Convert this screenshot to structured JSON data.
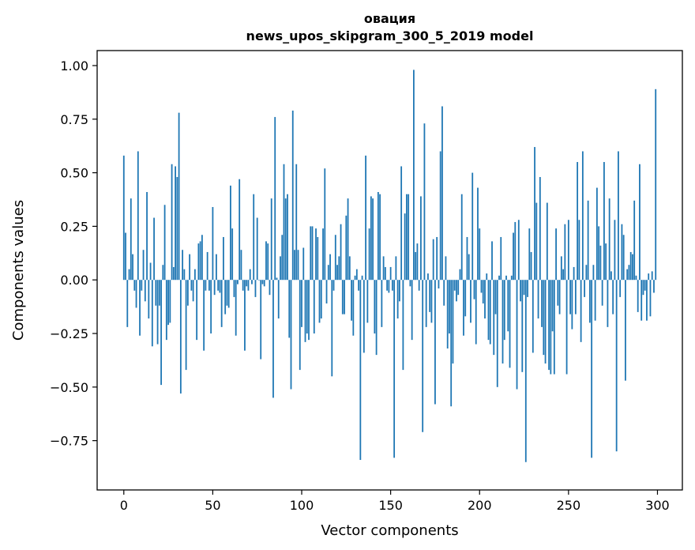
{
  "chart_data": {
    "type": "bar",
    "title": "овация",
    "subtitle": "news_upos_skipgram_300_5_2019 model",
    "xlabel": "Vector components",
    "ylabel": "Components values",
    "xlim": [
      -15,
      314
    ],
    "ylim": [
      -0.98,
      1.07
    ],
    "xticks": [
      0,
      50,
      100,
      150,
      200,
      250,
      300
    ],
    "xtick_labels": [
      "0",
      "50",
      "100",
      "150",
      "200",
      "250",
      "300"
    ],
    "yticks": [
      -0.75,
      -0.5,
      -0.25,
      0.0,
      0.25,
      0.5,
      0.75,
      1.0
    ],
    "ytick_labels": [
      "−0.75",
      "−0.50",
      "−0.25",
      "0.00",
      "0.25",
      "0.50",
      "0.75",
      "1.00"
    ],
    "grid": false,
    "legend": "none",
    "bar_color": "#1f77b4",
    "x": [
      0,
      1,
      2,
      3,
      4,
      5,
      6,
      7,
      8,
      9,
      10,
      11,
      12,
      13,
      14,
      15,
      16,
      17,
      18,
      19,
      20,
      21,
      22,
      23,
      24,
      25,
      26,
      27,
      28,
      29,
      30,
      31,
      32,
      33,
      34,
      35,
      36,
      37,
      38,
      39,
      40,
      41,
      42,
      43,
      44,
      45,
      46,
      47,
      48,
      49,
      50,
      51,
      52,
      53,
      54,
      55,
      56,
      57,
      58,
      59,
      60,
      61,
      62,
      63,
      64,
      65,
      66,
      67,
      68,
      69,
      70,
      71,
      72,
      73,
      74,
      75,
      76,
      77,
      78,
      79,
      80,
      81,
      82,
      83,
      84,
      85,
      86,
      87,
      88,
      89,
      90,
      91,
      92,
      93,
      94,
      95,
      96,
      97,
      98,
      99,
      100,
      101,
      102,
      103,
      104,
      105,
      106,
      107,
      108,
      109,
      110,
      111,
      112,
      113,
      114,
      115,
      116,
      117,
      118,
      119,
      120,
      121,
      122,
      123,
      124,
      125,
      126,
      127,
      128,
      129,
      130,
      131,
      132,
      133,
      134,
      135,
      136,
      137,
      138,
      139,
      140,
      141,
      142,
      143,
      144,
      145,
      146,
      147,
      148,
      149,
      150,
      151,
      152,
      153,
      154,
      155,
      156,
      157,
      158,
      159,
      160,
      161,
      162,
      163,
      164,
      165,
      166,
      167,
      168,
      169,
      170,
      171,
      172,
      173,
      174,
      175,
      176,
      177,
      178,
      179,
      180,
      181,
      182,
      183,
      184,
      185,
      186,
      187,
      188,
      189,
      190,
      191,
      192,
      193,
      194,
      195,
      196,
      197,
      198,
      199,
      200,
      201,
      202,
      203,
      204,
      205,
      206,
      207,
      208,
      209,
      210,
      211,
      212,
      213,
      214,
      215,
      216,
      217,
      218,
      219,
      220,
      221,
      222,
      223,
      224,
      225,
      226,
      227,
      228,
      229,
      230,
      231,
      232,
      233,
      234,
      235,
      236,
      237,
      238,
      239,
      240,
      241,
      242,
      243,
      244,
      245,
      246,
      247,
      248,
      249,
      250,
      251,
      252,
      253,
      254,
      255,
      256,
      257,
      258,
      259,
      260,
      261,
      262,
      263,
      264,
      265,
      266,
      267,
      268,
      269,
      270,
      271,
      272,
      273,
      274,
      275,
      276,
      277,
      278,
      279,
      280,
      281,
      282,
      283,
      284,
      285,
      286,
      287,
      288,
      289,
      290,
      291,
      292,
      293,
      294,
      295,
      296,
      297,
      298,
      299
    ],
    "values": [
      0.58,
      0.22,
      -0.22,
      0.05,
      0.38,
      0.12,
      -0.05,
      -0.13,
      0.6,
      -0.26,
      -0.05,
      0.14,
      -0.1,
      0.41,
      -0.18,
      0.08,
      -0.31,
      0.29,
      -0.12,
      -0.3,
      -0.12,
      -0.49,
      0.07,
      0.35,
      -0.28,
      -0.21,
      -0.2,
      0.54,
      0.06,
      0.53,
      0.48,
      0.78,
      -0.53,
      0.14,
      0.05,
      -0.42,
      -0.12,
      0.12,
      -0.05,
      -0.1,
      0.05,
      -0.28,
      0.17,
      0.18,
      0.21,
      -0.33,
      -0.05,
      0.13,
      -0.05,
      -0.25,
      0.34,
      -0.07,
      0.12,
      -0.05,
      -0.06,
      -0.22,
      0.2,
      -0.16,
      -0.12,
      -0.13,
      0.44,
      0.24,
      -0.08,
      -0.26,
      -0.02,
      0.47,
      0.14,
      -0.05,
      -0.33,
      -0.03,
      -0.05,
      0.05,
      -0.02,
      0.4,
      -0.08,
      0.29,
      0.0,
      -0.37,
      -0.02,
      -0.03,
      0.18,
      0.17,
      -0.07,
      0.38,
      -0.55,
      0.76,
      0.01,
      -0.18,
      0.11,
      0.21,
      0.54,
      0.38,
      0.4,
      -0.27,
      -0.51,
      0.79,
      0.14,
      0.54,
      0.14,
      -0.42,
      -0.22,
      0.15,
      -0.29,
      -0.25,
      -0.28,
      0.25,
      0.25,
      -0.25,
      0.24,
      0.2,
      -0.2,
      -0.18,
      0.24,
      0.52,
      -0.11,
      0.07,
      0.12,
      -0.45,
      -0.05,
      0.21,
      0.07,
      0.11,
      0.26,
      -0.16,
      -0.16,
      0.3,
      0.38,
      0.11,
      -0.19,
      -0.26,
      0.02,
      0.05,
      -0.05,
      -0.84,
      0.02,
      -0.34,
      0.58,
      -0.2,
      0.24,
      0.39,
      0.38,
      -0.25,
      -0.35,
      0.41,
      0.4,
      -0.22,
      0.11,
      0.06,
      -0.05,
      -0.06,
      0.06,
      -0.05,
      -0.83,
      0.11,
      -0.18,
      -0.1,
      0.53,
      -0.42,
      0.31,
      0.4,
      0.4,
      -0.03,
      -0.28,
      0.98,
      0.13,
      0.17,
      -0.05,
      0.39,
      -0.71,
      0.73,
      -0.22,
      0.03,
      -0.15,
      -0.2,
      0.19,
      -0.58,
      0.2,
      -0.04,
      0.6,
      0.81,
      -0.12,
      0.11,
      -0.32,
      -0.25,
      -0.59,
      -0.39,
      -0.05,
      -0.1,
      -0.07,
      0.05,
      0.4,
      -0.26,
      -0.17,
      0.2,
      0.12,
      -0.2,
      0.5,
      -0.09,
      -0.3,
      0.43,
      0.24,
      -0.06,
      -0.11,
      -0.18,
      0.03,
      -0.28,
      -0.3,
      0.18,
      -0.35,
      -0.16,
      -0.5,
      0.02,
      0.2,
      -0.39,
      -0.28,
      0.02,
      -0.24,
      -0.41,
      0.02,
      0.22,
      0.27,
      -0.51,
      0.28,
      -0.1,
      -0.43,
      -0.07,
      -0.85,
      -0.08,
      0.24,
      0.13,
      -0.34,
      0.62,
      0.36,
      -0.18,
      0.48,
      -0.22,
      -0.35,
      -0.39,
      0.36,
      -0.42,
      -0.44,
      -0.24,
      -0.44,
      0.24,
      -0.12,
      -0.16,
      0.11,
      0.05,
      0.26,
      -0.44,
      0.28,
      -0.16,
      -0.23,
      0.06,
      -0.16,
      0.55,
      0.28,
      -0.29,
      0.6,
      -0.08,
      0.07,
      0.37,
      -0.2,
      -0.83,
      0.07,
      -0.19,
      0.43,
      0.25,
      0.16,
      -0.12,
      0.55,
      0.17,
      -0.22,
      0.38,
      0.04,
      -0.16,
      0.28,
      -0.8,
      0.6,
      -0.08,
      0.26,
      0.21,
      -0.47,
      0.05,
      0.07,
      0.13,
      0.12,
      0.37,
      0.02,
      -0.15,
      0.54,
      -0.19,
      -0.07,
      -0.05,
      -0.19,
      0.03,
      -0.17,
      0.04,
      -0.06,
      0.89
    ],
    "values_note": ""
  }
}
